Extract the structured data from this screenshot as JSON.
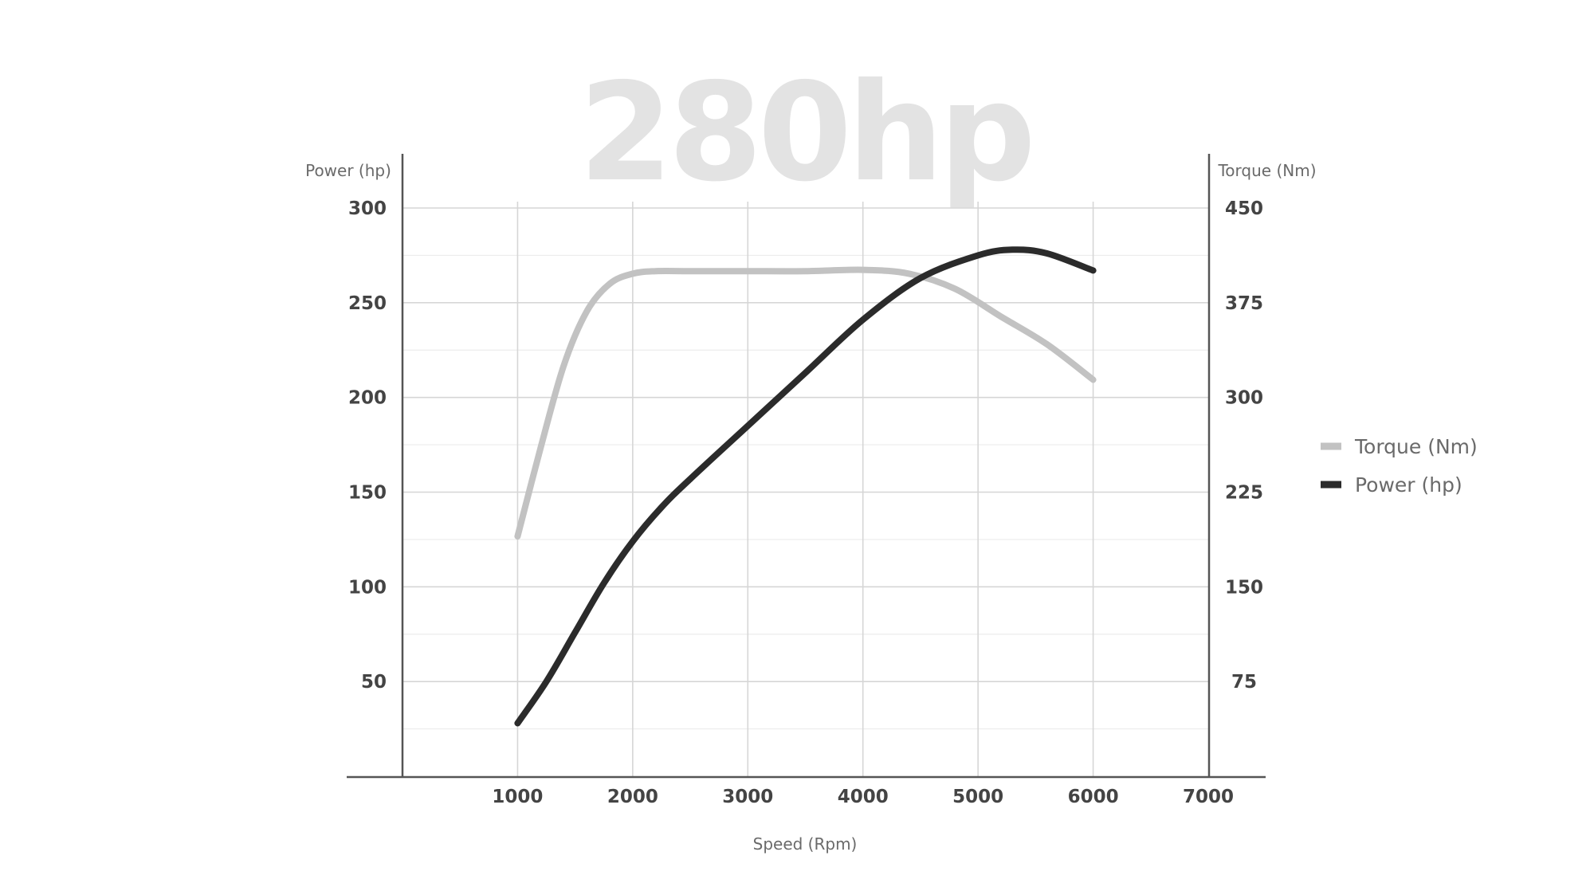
{
  "chart_data": {
    "type": "line",
    "title": "280hp",
    "xlabel": "Speed (Rpm)",
    "ylabel_left": "Power (hp)",
    "ylabel_right": "Torque (Nm)",
    "x_ticks": [
      1000,
      2000,
      3000,
      4000,
      5000,
      6000,
      7000
    ],
    "xlim": [
      0,
      7000
    ],
    "y_left_ticks": [
      50,
      100,
      150,
      200,
      250,
      300
    ],
    "ylim_left": [
      0,
      300
    ],
    "y_right_ticks": [
      75,
      150,
      225,
      300,
      375,
      450
    ],
    "ylim_right": [
      0,
      450
    ],
    "grid": true,
    "legend_position": "right",
    "series": [
      {
        "name": "Torque (Nm)",
        "axis": "right",
        "color": "#c2c2c2",
        "x": [
          1000,
          1200,
          1400,
          1600,
          1800,
          2000,
          2200,
          2500,
          3000,
          3500,
          4000,
          4400,
          4800,
          5200,
          5600,
          6000
        ],
        "y": [
          190,
          260,
          325,
          368,
          390,
          398,
          400,
          400,
          400,
          400,
          401,
          398,
          386,
          364,
          342,
          314
        ]
      },
      {
        "name": "Power (hp)",
        "axis": "left",
        "color": "#2b2b2b",
        "x": [
          1000,
          1250,
          1500,
          1750,
          2000,
          2250,
          2500,
          3000,
          3500,
          4000,
          4500,
          5000,
          5300,
          5600,
          6000
        ],
        "y": [
          28,
          50,
          76,
          102,
          124,
          142,
          157,
          185,
          213,
          241,
          263,
          275,
          278,
          276,
          267
        ]
      }
    ]
  },
  "legend": {
    "items": [
      {
        "label": "Torque (Nm)",
        "color": "#c2c2c2"
      },
      {
        "label": "Power (hp)",
        "color": "#2b2b2b"
      }
    ]
  }
}
